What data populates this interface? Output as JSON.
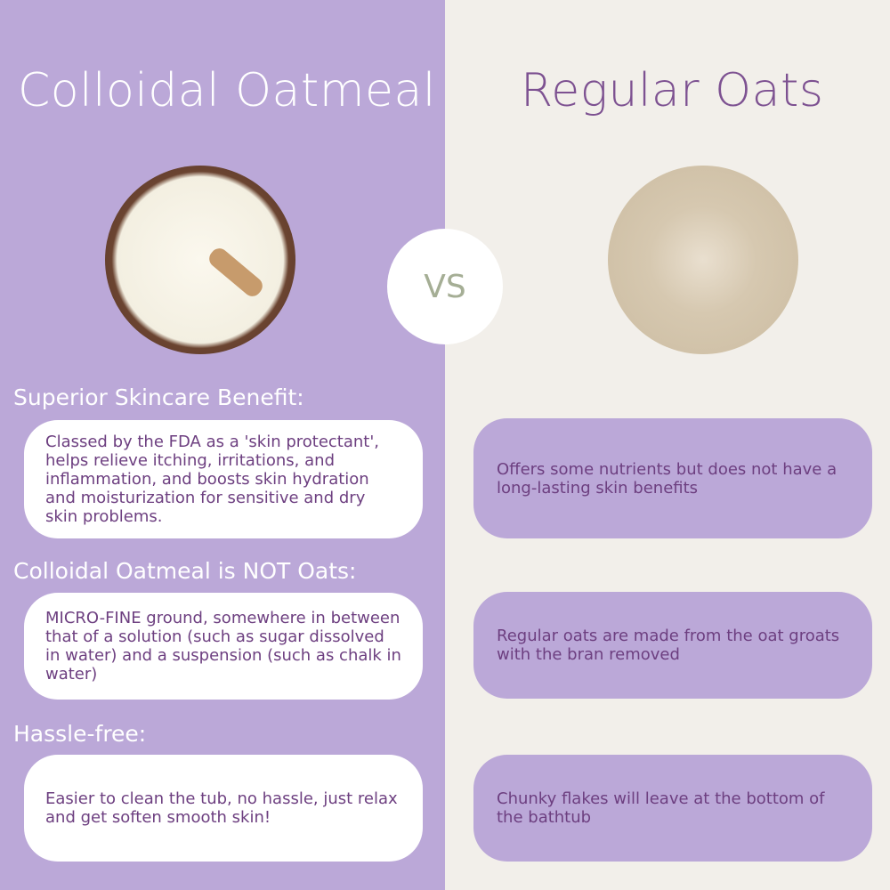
{
  "left": {
    "title": "Colloidal Oatmeal",
    "sections": [
      {
        "heading": "Superior Skincare Benefit:",
        "text": "Classed by the FDA as a 'skin protectant', helps relieve itching, irritations, and inflammation, and boosts skin hydration and moisturization for sensitive and dry skin problems."
      },
      {
        "heading": "Colloidal Oatmeal is NOT Oats:",
        "text": "MICRO-FINE ground, somewhere in between that of a solution (such as sugar dissolved in water) and a suspension (such as chalk in water)"
      },
      {
        "heading": "Hassle-free:",
        "text": "Easier to clean the tub, no hassle, just relax and get soften smooth skin!"
      }
    ]
  },
  "vs_label": "VS",
  "right": {
    "title": "Regular Oats",
    "sections": [
      {
        "text": "Offers some nutrients but does not have a long-lasting skin benefits"
      },
      {
        "text": "Regular oats are made from the oat groats with the bran removed"
      },
      {
        "text": "Chunky flakes will leave at the bottom of the bathtub"
      }
    ]
  },
  "colors": {
    "left_bg": "#bba8d8",
    "right_bg": "#f2efea",
    "text_purple": "#6d3f80",
    "vs_text": "#a5ae95"
  }
}
